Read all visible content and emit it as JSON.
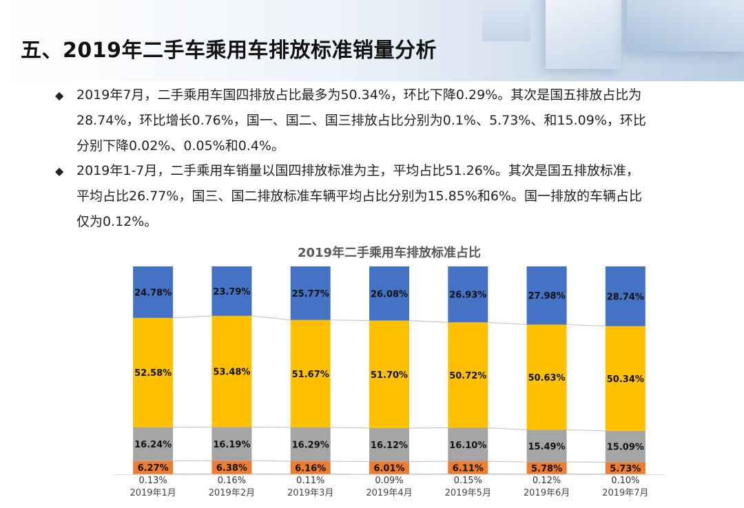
{
  "page": {
    "title": "五、2019年二手车乘用车排放标准销量分析"
  },
  "bullets": [
    {
      "marker": "◆",
      "lines": [
        "2019年7月，二手乘用车国四排放占比最多为50.34%，环比下降0.29%。其次是国五排放占比为",
        "28.74%，环比增长0.76%，国一、国二、国三排放占比分别为0.1%、5.73%、和15.09%，环比",
        "分别下降0.02%、0.05%和0.4%。"
      ]
    },
    {
      "marker": "◆",
      "lines": [
        "2019年1-7月，二手乘用车销量以国四排放标准为主，平均占比51.26%。其次是国五排放标准，",
        "平均占比26.77%，国三、国二排放标准车辆平均占比分别为15.85%和6%。国一排放的车辆占比",
        "仅为0.12%。"
      ]
    }
  ],
  "chart_data": {
    "type": "bar",
    "stacked": true,
    "normalized_percent": true,
    "title": "2019年二手乘用车排放标准占比",
    "categories": [
      "2019年1月",
      "2019年2月",
      "2019年3月",
      "2019年4月",
      "2019年5月",
      "2019年6月",
      "2019年7月"
    ],
    "series": [
      {
        "color": "#c0c0c0",
        "values": [
          0.13,
          0.16,
          0.11,
          0.09,
          0.15,
          0.12,
          0.1
        ],
        "labels": [
          "0.13%",
          "0.16%",
          "0.11%",
          "0.09%",
          "0.15%",
          "0.12%",
          "0.10%"
        ]
      },
      {
        "color": "#ed7d31",
        "values": [
          6.27,
          6.38,
          6.16,
          6.01,
          6.11,
          5.78,
          5.73
        ],
        "labels": [
          "6.27%",
          "6.38%",
          "6.16%",
          "6.01%",
          "6.11%",
          "5.78%",
          "5.73%"
        ]
      },
      {
        "color": "#a5a5a5",
        "values": [
          16.24,
          16.19,
          16.29,
          16.12,
          16.1,
          15.49,
          15.09
        ],
        "labels": [
          "16.24%",
          "16.19%",
          "16.29%",
          "16.12%",
          "16.10%",
          "15.49%",
          "15.09%"
        ]
      },
      {
        "color": "#ffc000",
        "values": [
          52.58,
          53.48,
          51.67,
          51.7,
          50.72,
          50.63,
          50.34
        ],
        "labels": [
          "52.58%",
          "53.48%",
          "51.67%",
          "51.70%",
          "50.72%",
          "50.63%",
          "50.34%"
        ]
      },
      {
        "color": "#4472c4",
        "values": [
          24.78,
          23.79,
          25.77,
          26.08,
          26.93,
          27.98,
          28.74
        ],
        "labels": [
          "24.78%",
          "23.79%",
          "25.77%",
          "26.08%",
          "26.93%",
          "27.98%",
          "28.74%"
        ]
      }
    ],
    "series_lines": true,
    "legend": "none",
    "grid": false
  }
}
